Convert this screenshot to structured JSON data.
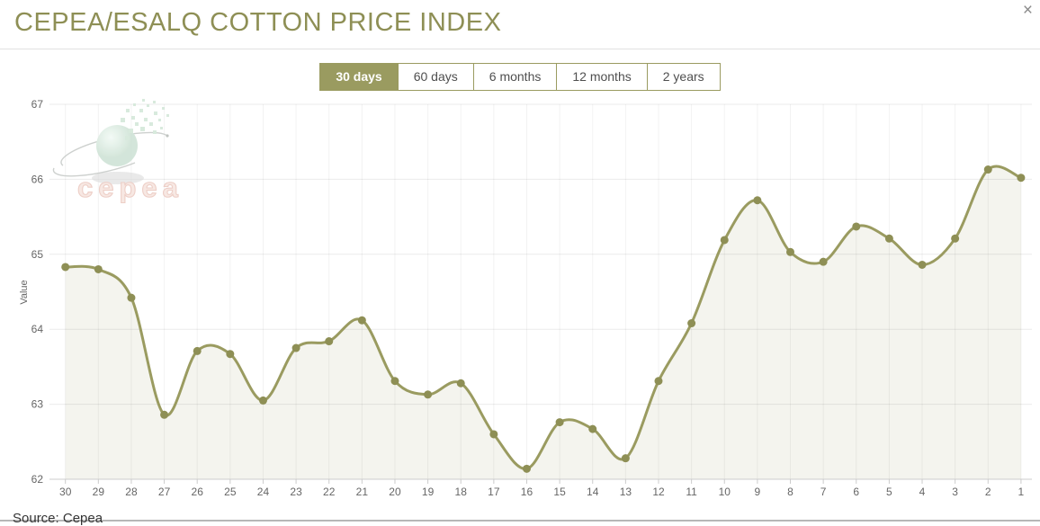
{
  "header": {
    "title": "CEPEA/ESALQ COTTON PRICE INDEX",
    "close_label": "×"
  },
  "range_buttons": [
    {
      "label": "30 days",
      "active": true
    },
    {
      "label": "60 days",
      "active": false
    },
    {
      "label": "6 months",
      "active": false
    },
    {
      "label": "12 months",
      "active": false
    },
    {
      "label": "2 years",
      "active": false
    }
  ],
  "chart_data": {
    "type": "area",
    "title": "",
    "xlabel": "",
    "ylabel": "Value",
    "ylim": [
      62,
      67
    ],
    "yticks": [
      62,
      63,
      64,
      65,
      66,
      67
    ],
    "grid": true,
    "legend": false,
    "line_color": "#9a9b60",
    "point_color": "#8e8f55",
    "fill_color": "#f4f4ee",
    "x": [
      30,
      29,
      28,
      27,
      26,
      25,
      24,
      23,
      22,
      21,
      20,
      19,
      18,
      17,
      16,
      15,
      14,
      13,
      12,
      11,
      10,
      9,
      8,
      7,
      6,
      5,
      4,
      3,
      2,
      1
    ],
    "values": [
      64.83,
      64.8,
      64.42,
      62.86,
      63.71,
      63.67,
      63.05,
      63.75,
      63.84,
      64.12,
      63.31,
      63.13,
      63.28,
      62.6,
      62.14,
      62.76,
      62.67,
      62.28,
      63.31,
      64.08,
      65.19,
      65.72,
      65.03,
      64.9,
      65.37,
      65.21,
      64.86,
      65.21,
      66.13,
      66.02
    ]
  },
  "watermark": {
    "text": "cepea"
  },
  "footer": {
    "source": "Source: Cepea"
  }
}
